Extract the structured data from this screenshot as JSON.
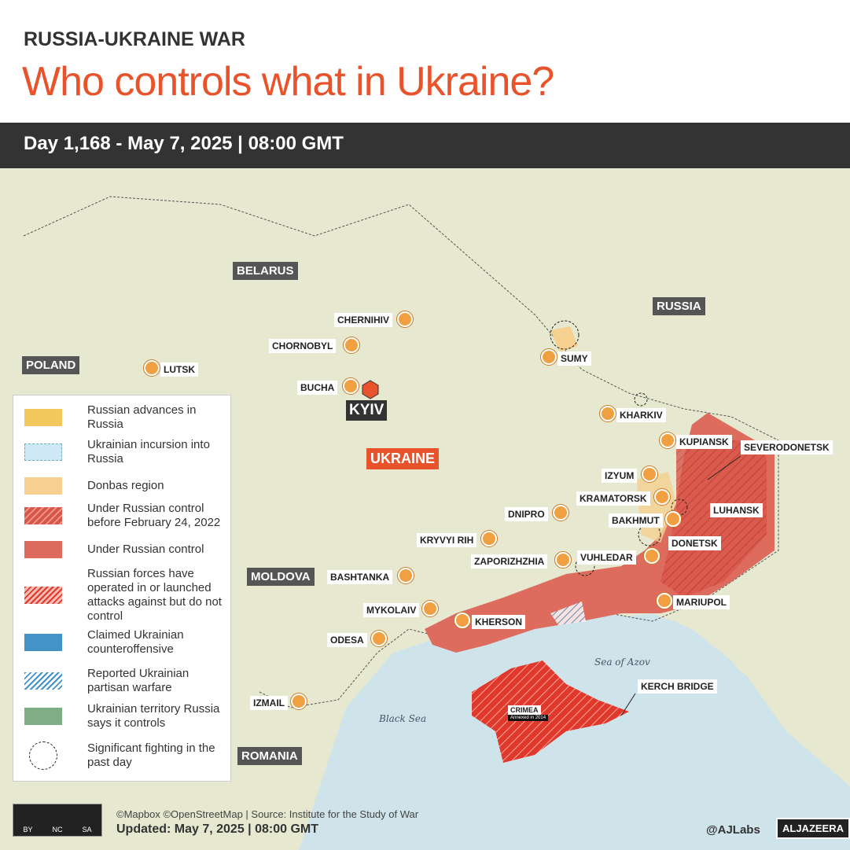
{
  "header": {
    "kicker": "RUSSIA-UKRAINE WAR",
    "title": "Who controls what in Ukraine?",
    "dateline": "Day 1,168 - May 7, 2025  |  08:00 GMT"
  },
  "colors": {
    "accent": "#e8532b",
    "russian_control": "#dd6b5e",
    "crimea": "#e0392b",
    "donbas": "#f5d08e",
    "advances": "#f2c75c",
    "land": "#e9ead2",
    "sea": "#cfe3ea",
    "counteroffensive": "#4393c9",
    "russia_says": "#7fae85"
  },
  "countries": {
    "belarus": "BELARUS",
    "russia": "RUSSIA",
    "poland": "POLAND",
    "ukraine": "UKRAINE",
    "moldova": "MOLDOVA",
    "romania": "ROMANIA"
  },
  "cities": {
    "chernihiv": "CHERNIHIV",
    "chornobyl": "CHORNOBYL",
    "lutsk": "LUTSK",
    "bucha": "BUCHA",
    "kyiv": "KYIV",
    "sumy": "SUMY",
    "kharkiv": "KHARKIV",
    "kupiansk": "KUPIANSK",
    "severodonetsk": "SEVERODONETSK",
    "izyum": "IZYUM",
    "kramatorsk": "KRAMATORSK",
    "bakhmut": "BAKHMUT",
    "luhansk": "LUHANSK",
    "dnipro": "DNIPRO",
    "kryvyi_rih": "KRYVYI RIH",
    "donetsk": "DONETSK",
    "vuhledar": "VUHLEDAR",
    "zaporizhzhia": "ZAPORIZHZHIA",
    "bashtanka": "BASHTANKA",
    "mariupol": "MARIUPOL",
    "mykolaiv": "MYKOLAIV",
    "kherson": "KHERSON",
    "odesa": "ODESA",
    "izmail": "IZMAIL",
    "crimea": "CRIMEA",
    "crimea_note": "Annexed in 2014",
    "kerch": "KERCH BRIDGE"
  },
  "seas": {
    "azov": "Sea of Azov",
    "black": "Black Sea"
  },
  "legend": [
    {
      "label": "Russian advances in Russia",
      "icon": "advances"
    },
    {
      "label": "Ukrainian incursion into Russia",
      "icon": "incursion"
    },
    {
      "label": "Donbas region",
      "icon": "donbas"
    },
    {
      "label": "Under Russian control before February 24, 2022",
      "icon": "pre-2022"
    },
    {
      "label": "Under Russian control",
      "icon": "control"
    },
    {
      "label": "Russian forces have operated in or launched attacks against but do not control",
      "icon": "operated"
    },
    {
      "label": "Claimed Ukrainian counteroffensive",
      "icon": "counteroffensive"
    },
    {
      "label": "Reported Ukrainian partisan warfare",
      "icon": "partisan"
    },
    {
      "label": "Ukrainian territory Russia says it controls",
      "icon": "russia-says"
    },
    {
      "label": "Significant fighting in the past day",
      "icon": "fighting"
    }
  ],
  "footer": {
    "credits": "©Mapbox ©OpenStreetMap | Source: Institute for the Study of War",
    "updated": "Updated: May 7, 2025  |  08:00 GMT",
    "handle": "@AJLabs",
    "logo": "ALJAZEERA",
    "license": [
      "BY",
      "NC",
      "SA"
    ]
  }
}
